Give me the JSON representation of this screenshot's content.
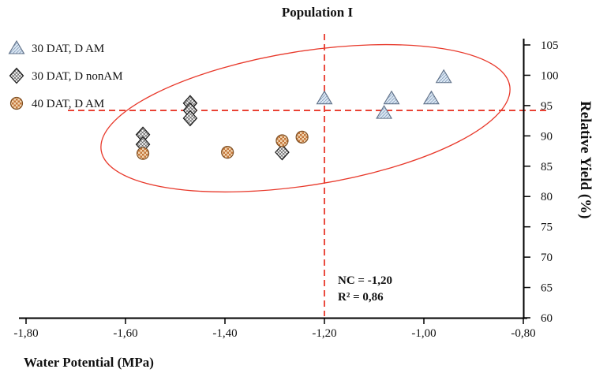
{
  "title": "Population I",
  "legend": [
    {
      "label": "30 DAT, D AM",
      "marker": "triangle"
    },
    {
      "label": "30 DAT, D nonAM",
      "marker": "diamond"
    },
    {
      "label": "40 DAT, D AM",
      "marker": "circle"
    }
  ],
  "annotation": {
    "line1": "NC = -1,20",
    "line2": "R² = 0,86"
  },
  "axes": {
    "x_label": "Water Potential (MPa)",
    "y_label": "Relative Yield  (%)",
    "x_ticks": [
      "-1,80",
      "-1,60",
      "-1,40",
      "-1,20",
      "-1,00",
      "-0,80"
    ],
    "x_tick_values": [
      -1.8,
      -1.6,
      -1.4,
      -1.2,
      -1.0,
      -0.8
    ],
    "y_ticks": [
      105,
      100,
      95,
      90,
      85,
      80,
      75,
      70,
      65,
      60
    ]
  },
  "colors": {
    "reference_line": "#e8392b",
    "highlight_ellipse": "#e8392b",
    "triangle_fill": "#dde9f4",
    "triangle_hatch": "#90a6c2",
    "triangle_stroke": "#5f7088",
    "diamond_fill": "#ffffff",
    "diamond_hatch": "#444444",
    "circle_fill": "#f2d7b3",
    "circle_check": "#c4763a",
    "axis_color": "#000000"
  },
  "chart_data": {
    "type": "scatter",
    "title": "Population I",
    "xlabel": "Water Potential (MPa)",
    "ylabel": "Relative Yield (%)",
    "xlim": [
      -1.8,
      -0.8
    ],
    "ylim": [
      60,
      105
    ],
    "grid": false,
    "legend_position": "upper-left",
    "series": [
      {
        "name": "30 DAT, D AM",
        "marker": "triangle",
        "points": [
          [
            -1.2,
            96.2
          ],
          [
            -1.08,
            93.8
          ],
          [
            -1.065,
            96.2
          ],
          [
            -0.985,
            96.2
          ],
          [
            -0.96,
            99.7
          ]
        ]
      },
      {
        "name": "30 DAT, D nonAM",
        "marker": "diamond",
        "points": [
          [
            -1.565,
            90.2
          ],
          [
            -1.565,
            88.6
          ],
          [
            -1.47,
            95.4
          ],
          [
            -1.47,
            94.2
          ],
          [
            -1.47,
            92.9
          ],
          [
            -1.285,
            87.3
          ]
        ]
      },
      {
        "name": "40 DAT, D AM",
        "marker": "circle",
        "points": [
          [
            -1.565,
            87.1
          ],
          [
            -1.395,
            87.3
          ],
          [
            -1.285,
            89.2
          ],
          [
            -1.245,
            89.8
          ]
        ]
      }
    ],
    "reference_lines": {
      "vertical_x": -1.2,
      "horizontal_y": 94.2
    },
    "annotations": [
      "NC = -1,20",
      "R² = 0,86"
    ]
  }
}
